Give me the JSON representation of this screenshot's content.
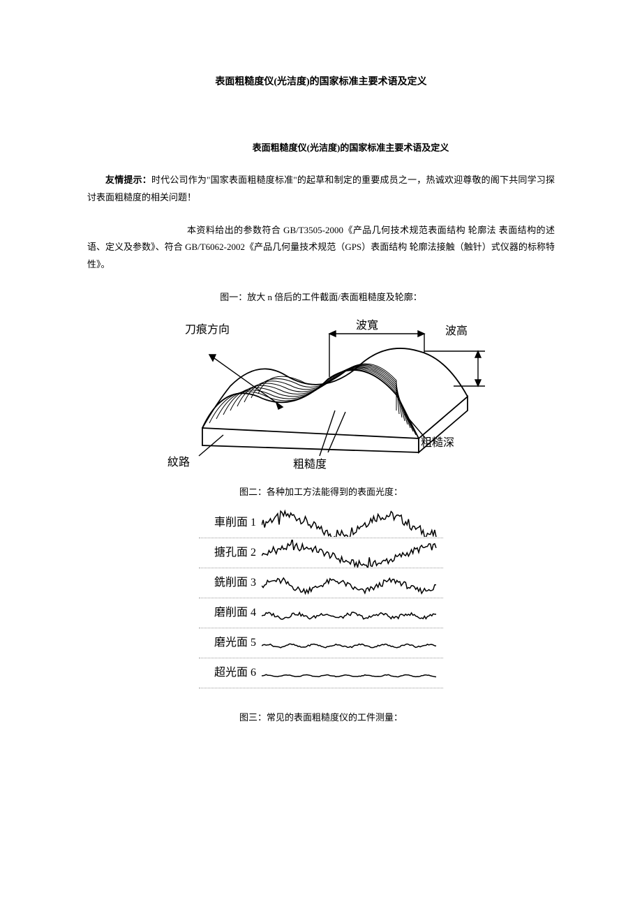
{
  "title": "表面粗糙度仪(光洁度)的国家标准主要术语及定义",
  "subtitle": "表面粗糙度仪(光洁度)的国家标准主要术语及定义",
  "tip_label": "友情提示：",
  "tip_body": "时代公司作为\"国家表面粗糙度标准\"的起草和制定的重要成员之一，热诚欢迎尊敬的阁下共同学习探讨表面粗糙度的相关问题！",
  "para2": "本资料给出的参数符合 GB/T3505-2000《产品几何技术规范表面结构 轮廓法 表面结构的述语、定义及参数》、符合 GB/T6062-2002《产品几何量技术规范（GPS）表面结构 轮廓法接触（触针）式仪器的标称特性》。",
  "fig1_caption": "图一：放大 n 倍后的工件截面/表面粗糙度及轮廓：",
  "fig2_caption": "图二：各种加工方法能得到的表面光度：",
  "fig3_caption": "图三：常见的表面粗糙度仪的工件测量：",
  "fig1": {
    "labels": {
      "knife": "刀痕方向",
      "wave_width": "波寬",
      "wave_height": "波高",
      "texture": "紋路",
      "roughness": "粗糙度",
      "rough_depth": "粗糙深"
    },
    "colors": {
      "stroke": "#000000",
      "fill": "#ffffff"
    }
  },
  "fig2": {
    "rows": [
      {
        "label": "車削面 1",
        "amplitude": 14,
        "freq": 7,
        "noise": 0.5
      },
      {
        "label": "搪孔面 2",
        "amplitude": 13,
        "freq": 5,
        "noise": 0.4
      },
      {
        "label": "銑削面 3",
        "amplitude": 7,
        "freq": 12,
        "noise": 0.6
      },
      {
        "label": "磨削面 4",
        "amplitude": 3,
        "freq": 25,
        "noise": 0.8
      },
      {
        "label": "磨光面 5",
        "amplitude": 2,
        "freq": 30,
        "noise": 0.5
      },
      {
        "label": "超光面 6",
        "amplitude": 1.2,
        "freq": 35,
        "noise": 0.3
      }
    ],
    "stroke_color": "#000000",
    "stroke_width": 1.5,
    "label_fontsize": 16
  },
  "colors": {
    "text": "#000000",
    "background": "#ffffff"
  }
}
